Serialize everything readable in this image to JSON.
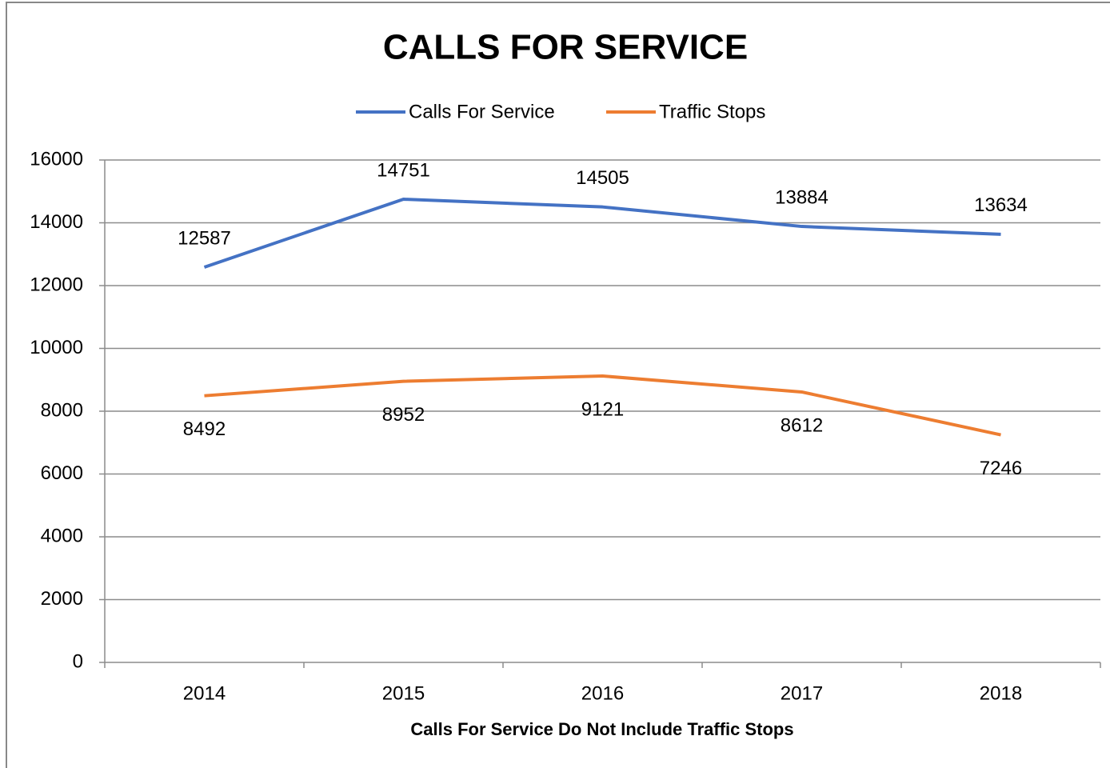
{
  "chart_data": {
    "type": "line",
    "title": "CALLS FOR SERVICE",
    "xlabel": "Calls For Service Do Not Include Traffic Stops",
    "categories": [
      "2014",
      "2015",
      "2016",
      "2017",
      "2018"
    ],
    "series": [
      {
        "name": "Calls For Service",
        "color": "#4472c4",
        "values": [
          12587,
          14751,
          14505,
          13884,
          13634
        ]
      },
      {
        "name": "Traffic Stops",
        "color": "#ed7d31",
        "values": [
          8492,
          8952,
          9121,
          8612,
          7246
        ]
      }
    ],
    "ylim": [
      0,
      16000
    ],
    "yticks": [
      0,
      2000,
      4000,
      6000,
      8000,
      10000,
      12000,
      14000,
      16000
    ],
    "grid": true,
    "legend": "top",
    "data_labels": true
  }
}
